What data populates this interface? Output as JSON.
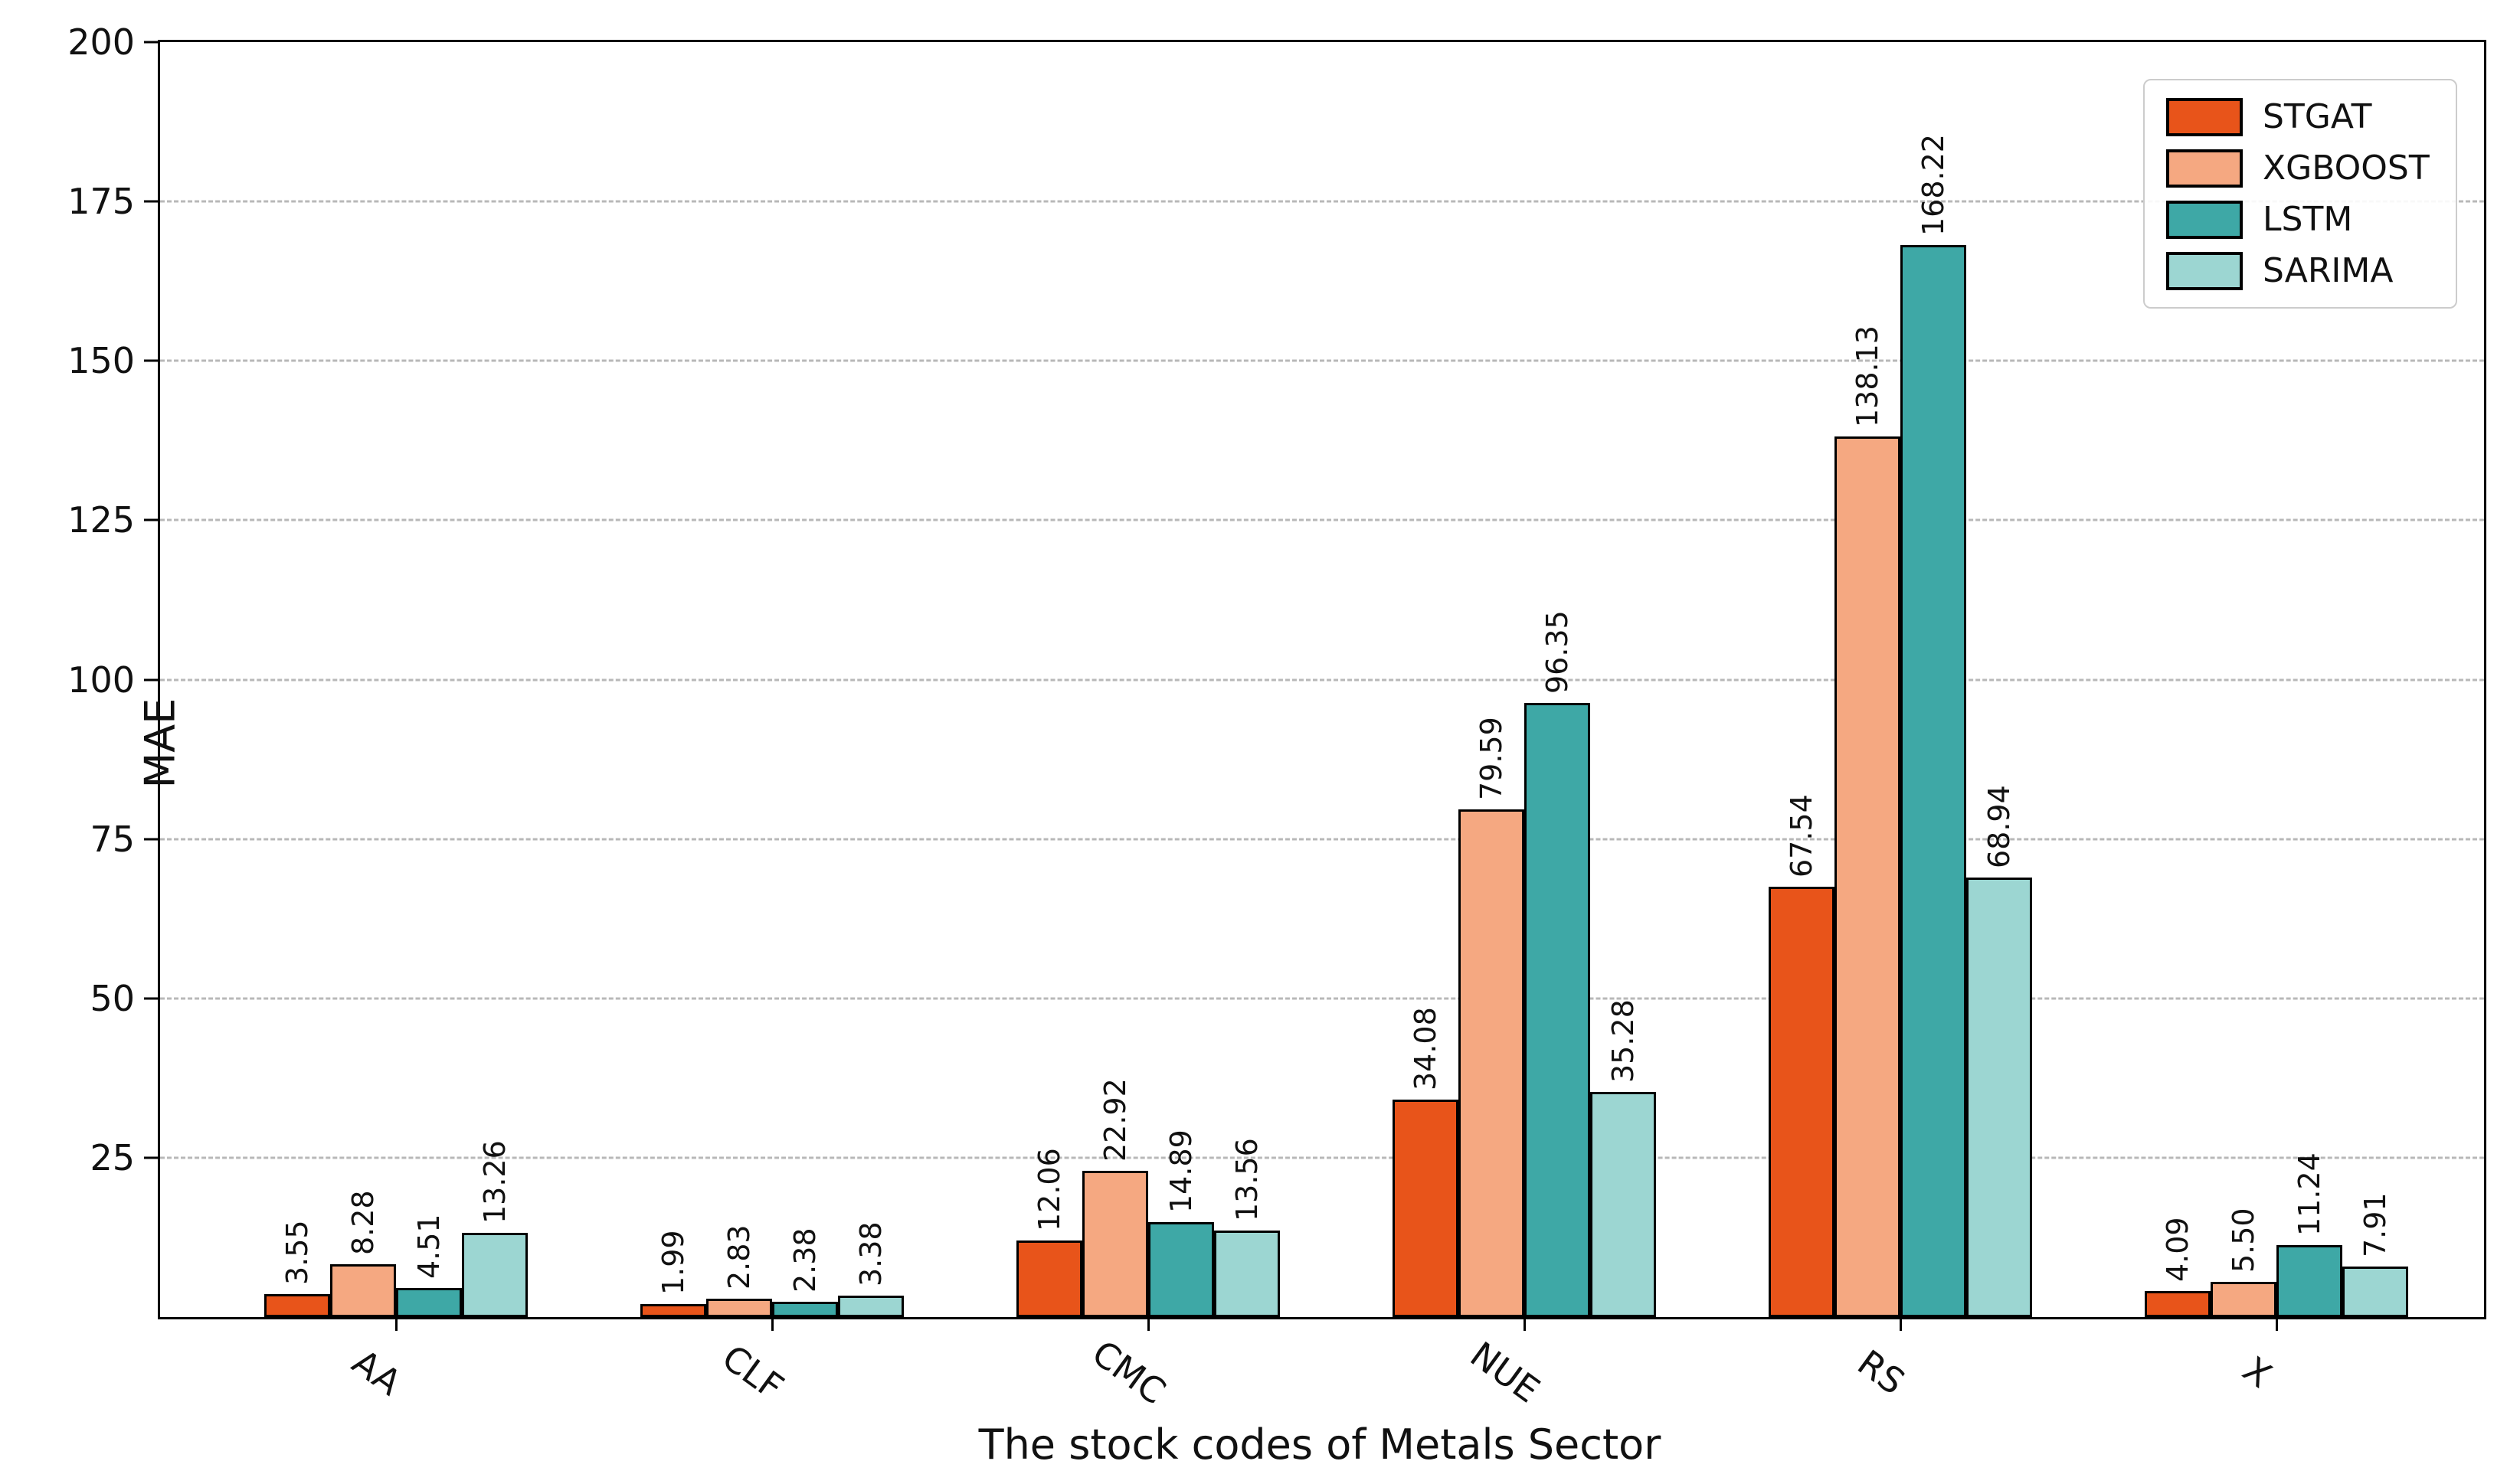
{
  "chart_data": {
    "type": "bar",
    "title": "",
    "xlabel": "The stock codes of Metals Sector",
    "ylabel": "MAE",
    "categories": [
      "AA",
      "CLF",
      "CMC",
      "NUE",
      "RS",
      "X"
    ],
    "series": [
      {
        "name": "STGAT",
        "color": "#E8541A",
        "values": [
          3.55,
          1.99,
          12.06,
          34.08,
          67.54,
          4.09
        ]
      },
      {
        "name": "XGBOOST",
        "color": "#F5A881",
        "values": [
          8.28,
          2.83,
          22.92,
          79.59,
          138.13,
          5.5
        ]
      },
      {
        "name": "LSTM",
        "color": "#3EA8A6",
        "values": [
          4.51,
          2.38,
          14.89,
          96.35,
          168.22,
          11.24
        ]
      },
      {
        "name": "SARIMA",
        "color": "#9CD6D2",
        "values": [
          13.26,
          3.38,
          13.56,
          35.28,
          68.94,
          7.91
        ]
      }
    ],
    "ylim": [
      0,
      200
    ],
    "yticks": [
      25,
      50,
      75,
      100,
      125,
      150,
      175,
      200
    ],
    "grid": "horizontal-dashed",
    "grid_color": "#b8b8b8",
    "bar_edge_color": "#000000",
    "value_label_decimals": 2,
    "value_label_rotation_deg": 90,
    "xtick_rotation_deg": 36,
    "legend_position": "top-right",
    "plot_background": "#ffffff"
  }
}
